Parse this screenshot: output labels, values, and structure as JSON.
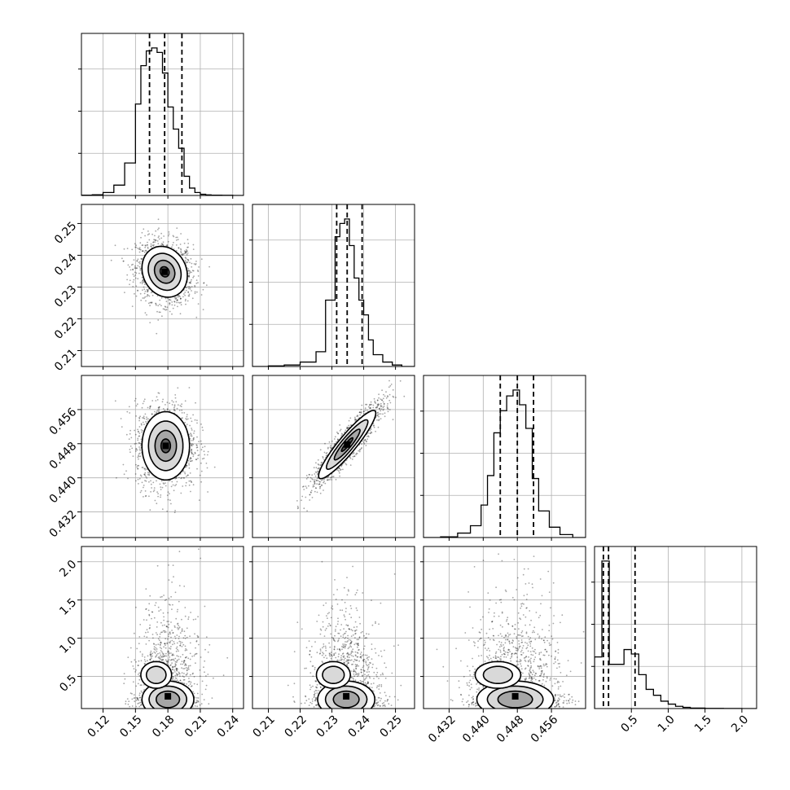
{
  "chart_data": {
    "type": "corner",
    "parameters": [
      {
        "histogram": {
          "bin_edges": [
            0.1,
            0.11,
            0.12,
            0.13,
            0.14,
            0.15,
            0.155,
            0.16,
            0.165,
            0.17,
            0.175,
            0.18,
            0.185,
            0.19,
            0.195,
            0.2,
            0.205,
            0.21,
            0.215,
            0.22,
            0.23,
            0.24,
            0.25
          ],
          "counts": [
            0.002,
            0.005,
            0.02,
            0.07,
            0.22,
            0.62,
            0.88,
            0.98,
            1.0,
            0.97,
            0.83,
            0.6,
            0.45,
            0.32,
            0.13,
            0.05,
            0.02,
            0.008,
            0.004,
            0.002,
            0.001,
            0.0
          ]
        },
        "range": [
          0.1,
          0.25
        ],
        "ticks": [
          0.12,
          0.15,
          0.18,
          0.21,
          0.24
        ],
        "tick_labels": [
          "0.12",
          "0.15",
          "0.18",
          "0.21",
          "0.24"
        ],
        "quantiles": [
          0.163,
          0.177,
          0.193
        ]
      },
      {
        "histogram": {
          "bin_edges": [
            0.205,
            0.21,
            0.215,
            0.22,
            0.225,
            0.228,
            0.231,
            0.2325,
            0.234,
            0.2355,
            0.237,
            0.2385,
            0.24,
            0.2415,
            0.243,
            0.246,
            0.249,
            0.252,
            0.256
          ],
          "counts": [
            0.0,
            0.004,
            0.01,
            0.03,
            0.1,
            0.45,
            0.88,
            0.97,
            1.0,
            0.82,
            0.6,
            0.45,
            0.35,
            0.18,
            0.08,
            0.03,
            0.01,
            0.0
          ]
        },
        "range": [
          0.205,
          0.256
        ],
        "ticks": [
          0.21,
          0.22,
          0.23,
          0.24,
          0.25
        ],
        "tick_labels": [
          "0.21",
          "0.22",
          "0.23",
          "0.24",
          "0.25"
        ],
        "quantiles": [
          0.2315,
          0.2348,
          0.2395
        ]
      },
      {
        "histogram": {
          "bin_edges": [
            0.426,
            0.43,
            0.434,
            0.437,
            0.4395,
            0.441,
            0.4425,
            0.444,
            0.4455,
            0.447,
            0.4485,
            0.45,
            0.4515,
            0.453,
            0.4555,
            0.458,
            0.461,
            0.464
          ],
          "counts": [
            0.0,
            0.005,
            0.03,
            0.08,
            0.22,
            0.42,
            0.71,
            0.86,
            0.96,
            1.0,
            0.9,
            0.74,
            0.4,
            0.18,
            0.07,
            0.02,
            0.0
          ]
        },
        "range": [
          0.426,
          0.464
        ],
        "ticks": [
          0.432,
          0.44,
          0.448,
          0.456
        ],
        "tick_labels": [
          "0.432",
          "0.440",
          "0.448",
          "0.456"
        ],
        "quantiles": [
          0.444,
          0.448,
          0.4518
        ]
      },
      {
        "histogram": {
          "bin_edges": [
            0.0,
            0.1,
            0.2,
            0.3,
            0.4,
            0.5,
            0.6,
            0.7,
            0.8,
            0.9,
            1.0,
            1.1,
            1.2,
            1.3,
            1.5,
            1.75,
            2.0,
            2.2
          ],
          "counts": [
            0.35,
            1.0,
            0.3,
            0.3,
            0.4,
            0.37,
            0.23,
            0.13,
            0.09,
            0.05,
            0.03,
            0.015,
            0.008,
            0.003,
            0.001,
            0.0005,
            0.0
          ]
        },
        "range": [
          0.0,
          2.2
        ],
        "ticks": [
          0.5,
          1.0,
          1.5,
          2.0
        ],
        "tick_labels": [
          "0.5",
          "1.0",
          "1.5",
          "2.0"
        ],
        "quantiles": [
          0.12,
          0.19,
          0.55
        ]
      }
    ],
    "y_axis": {
      "ranges": {
        "1": [
          0.205,
          0.256
        ],
        "2": [
          0.426,
          0.464
        ],
        "3": [
          0.08,
          2.2
        ]
      },
      "ticks": {
        "1": [
          0.21,
          0.22,
          0.23,
          0.24,
          0.25
        ],
        "2": [
          0.432,
          0.44,
          0.448,
          0.456
        ],
        "3": [
          0.5,
          1.0,
          1.5,
          2.0
        ]
      },
      "tick_labels": {
        "1": [
          "0.21",
          "0.22",
          "0.23",
          "0.24",
          "0.25"
        ],
        "2": [
          "0.432",
          "0.440",
          "0.448",
          "0.456"
        ],
        "3": [
          "0.5",
          "1.0",
          "1.5",
          "2.0"
        ]
      }
    },
    "joint": [
      {
        "row": 1,
        "col": 0,
        "mean": [
          0.177,
          0.2348
        ],
        "sd": [
          0.0105,
          0.004
        ],
        "rho": -0.15,
        "contour_levels": [
          0.4,
          0.9,
          1.45,
          2.0
        ]
      },
      {
        "row": 2,
        "col": 0,
        "mean": [
          0.178,
          0.4475
        ],
        "sd": [
          0.011,
          0.004
        ],
        "rho": 0.0,
        "contour_levels": [
          0.4,
          0.9,
          1.45,
          2.0
        ]
      },
      {
        "row": 2,
        "col": 1,
        "mean": [
          0.2348,
          0.4478
        ],
        "sd": [
          0.0045,
          0.004
        ],
        "rho": 0.92,
        "contour_levels": [
          0.4,
          0.9,
          1.45,
          2.0
        ]
      },
      {
        "row": 3,
        "col": 0,
        "mean": [
          0.18,
          0.25
        ],
        "sd": [
          0.012,
          0.3
        ],
        "rho": 0.0,
        "contour_levels": [
          0.4,
          0.9,
          1.45,
          2.0
        ]
      },
      {
        "row": 3,
        "col": 1,
        "mean": [
          0.2345,
          0.25
        ],
        "sd": [
          0.0045,
          0.3
        ],
        "rho": 0.0,
        "contour_levels": [
          0.4,
          0.9,
          1.45,
          2.0
        ]
      },
      {
        "row": 3,
        "col": 2,
        "mean": [
          0.4475,
          0.25
        ],
        "sd": [
          0.0045,
          0.3
        ],
        "rho": 0.0,
        "contour_levels": [
          0.4,
          0.9,
          1.45,
          2.0
        ]
      }
    ],
    "grid": true,
    "title": "",
    "xlabel": "",
    "ylabel": ""
  }
}
